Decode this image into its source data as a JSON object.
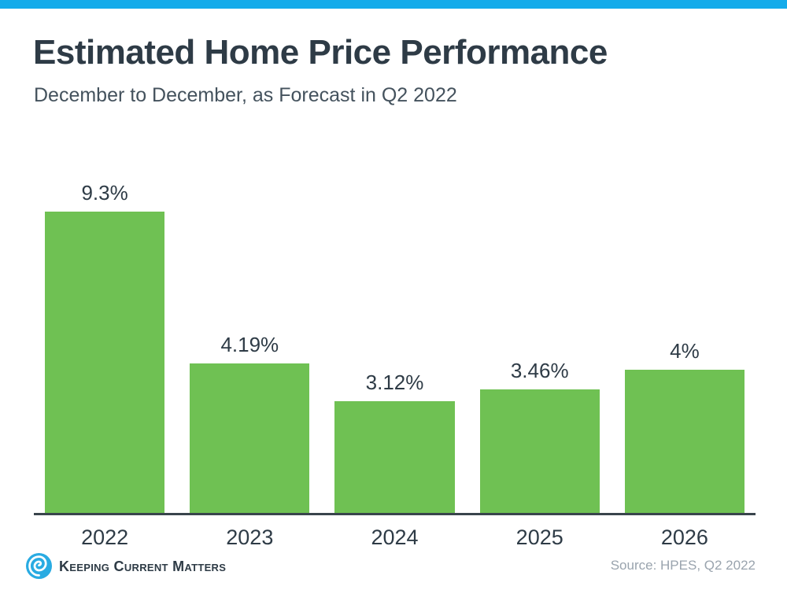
{
  "header": {
    "title": "Estimated Home Price Performance",
    "subtitle": "December to December, as Forecast in Q2 2022"
  },
  "chart_data": {
    "type": "bar",
    "categories": [
      "2022",
      "2023",
      "2024",
      "2025",
      "2026"
    ],
    "values": [
      9.3,
      4.19,
      3.12,
      3.46,
      4
    ],
    "value_labels": [
      "9.3%",
      "4.19%",
      "3.12%",
      "3.46%",
      "4%"
    ],
    "title": "Estimated Home Price Performance",
    "subtitle": "December to December, as Forecast in Q2 2022",
    "xlabel": "",
    "ylabel": "",
    "ylim": [
      0,
      9.5
    ],
    "grid": false,
    "legend": false,
    "bar_color": "#6fc153"
  },
  "footer": {
    "logo_text": "Keeping Current Matters",
    "source": "Source: HPES, Q2 2022"
  },
  "colors": {
    "accent_top_bar": "#14abea",
    "bar_green": "#6fc153",
    "text_dark": "#2e3b46",
    "subtitle_gray": "#44525d",
    "axis_dark": "#39444c",
    "source_gray": "#9aa4ae",
    "logo_blue": "#29abe2"
  }
}
